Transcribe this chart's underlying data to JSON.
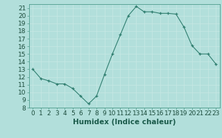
{
  "x": [
    0,
    1,
    2,
    3,
    4,
    5,
    6,
    7,
    8,
    9,
    10,
    11,
    12,
    13,
    14,
    15,
    16,
    17,
    18,
    19,
    20,
    21,
    22,
    23
  ],
  "y": [
    13,
    11.8,
    11.5,
    11.1,
    11.1,
    10.5,
    9.5,
    8.5,
    9.5,
    12.3,
    15.0,
    17.5,
    20.0,
    21.2,
    20.5,
    20.5,
    20.3,
    20.3,
    20.2,
    18.5,
    16.1,
    15.0,
    15.0,
    13.7
  ],
  "line_color": "#2e7d6e",
  "marker": "+",
  "bg_color": "#b2dfdb",
  "grid_color": "#c8e8e5",
  "xlabel": "Humidex (Indice chaleur)",
  "xlim": [
    -0.5,
    23.5
  ],
  "ylim": [
    8,
    21.5
  ],
  "yticks": [
    8,
    9,
    10,
    11,
    12,
    13,
    14,
    15,
    16,
    17,
    18,
    19,
    20,
    21
  ],
  "xticks": [
    0,
    1,
    2,
    3,
    4,
    5,
    6,
    7,
    8,
    9,
    10,
    11,
    12,
    13,
    14,
    15,
    16,
    17,
    18,
    19,
    20,
    21,
    22,
    23
  ],
  "xtick_labels": [
    "0",
    "1",
    "2",
    "3",
    "4",
    "5",
    "6",
    "7",
    "8",
    "9",
    "10",
    "11",
    "12",
    "13",
    "14",
    "15",
    "16",
    "17",
    "18",
    "19",
    "20",
    "21",
    "22",
    "23"
  ],
  "tick_fontsize": 6.5,
  "xlabel_fontsize": 7.5,
  "spine_color": "#4a9a8a",
  "line_width": 0.8,
  "marker_size": 3
}
